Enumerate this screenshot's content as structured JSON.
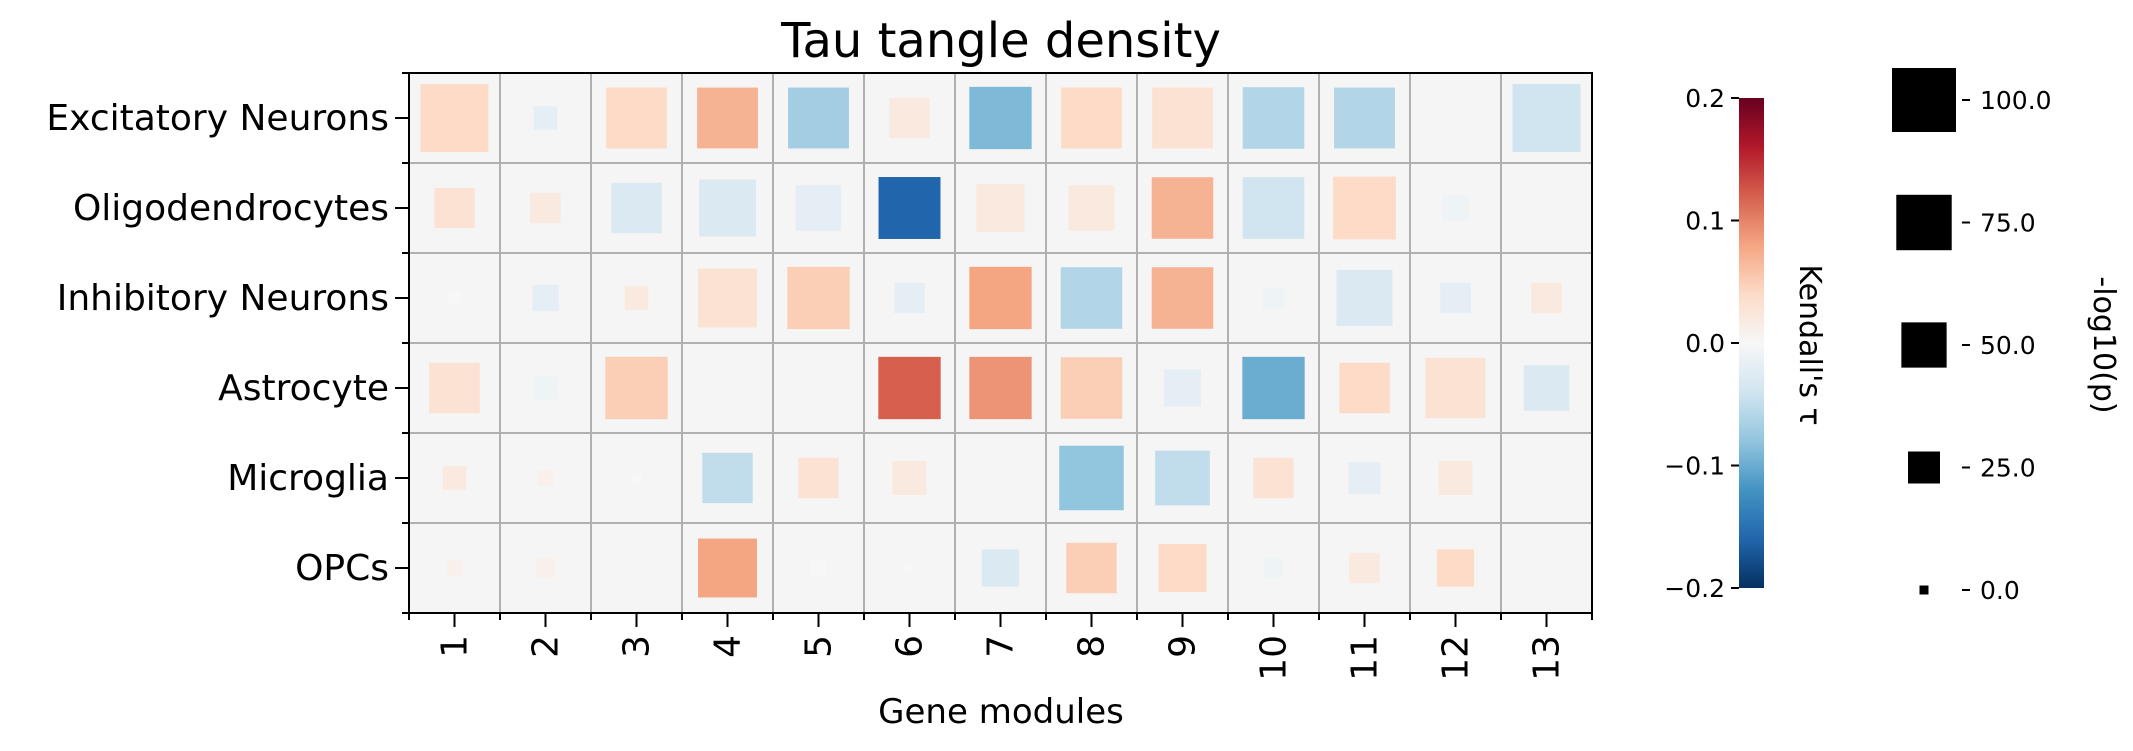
{
  "chart_data": {
    "type": "heatmap",
    "title": "Tau tangle density",
    "xlabel": "Gene modules",
    "ylabel": "",
    "rows": [
      "Excitatory Neurons",
      "Oligodendrocytes",
      "Inhibitory Neurons",
      "Astrocyte",
      "Microglia",
      "OPCs"
    ],
    "columns": [
      "1",
      "2",
      "3",
      "4",
      "5",
      "6",
      "7",
      "8",
      "9",
      "10",
      "11",
      "12",
      "13"
    ],
    "tau": [
      [
        0.04,
        -0.02,
        0.04,
        0.07,
        -0.07,
        0.02,
        -0.09,
        0.04,
        0.03,
        -0.06,
        -0.06,
        0.0,
        -0.04
      ],
      [
        0.03,
        0.02,
        -0.03,
        -0.03,
        -0.02,
        -0.16,
        0.02,
        0.02,
        0.07,
        -0.04,
        0.04,
        -0.01,
        0.0
      ],
      [
        0.0,
        -0.02,
        0.02,
        0.03,
        0.05,
        -0.02,
        0.08,
        -0.06,
        0.07,
        -0.01,
        -0.03,
        -0.02,
        0.02
      ],
      [
        0.03,
        -0.01,
        0.05,
        0.0,
        0.0,
        0.12,
        0.09,
        0.05,
        -0.02,
        -0.1,
        0.04,
        0.03,
        -0.03
      ],
      [
        0.02,
        0.01,
        0.0,
        -0.05,
        0.03,
        0.02,
        0.0,
        -0.08,
        -0.05,
        0.03,
        -0.02,
        0.02,
        0.0
      ],
      [
        0.01,
        0.01,
        0.0,
        0.08,
        0.0,
        0.0,
        -0.03,
        0.05,
        0.04,
        -0.01,
        0.02,
        0.04,
        0.0
      ]
    ],
    "neg_log10_p": [
      [
        100,
        12,
        80,
        80,
        80,
        35,
        84,
        80,
        80,
        82,
        80,
        0,
        100
      ],
      [
        35,
        20,
        55,
        70,
        45,
        83,
        50,
        45,
        82,
        82,
        85,
        15,
        0
      ],
      [
        3,
        15,
        12,
        75,
        84,
        20,
        84,
        82,
        82,
        10,
        68,
        20,
        20
      ],
      [
        55,
        12,
        84,
        0,
        0,
        84,
        84,
        82,
        30,
        84,
        55,
        78,
        45
      ],
      [
        12,
        5,
        2,
        55,
        35,
        25,
        0,
        90,
        65,
        35,
        22,
        25,
        0
      ],
      [
        5,
        8,
        0,
        75,
        5,
        1,
        30,
        55,
        50,
        8,
        20,
        30,
        0
      ]
    ],
    "color_scale": {
      "label": "Kendall's τ",
      "min": -0.2,
      "max": 0.2,
      "ticks": [
        "0.2",
        "0.1",
        "0.0",
        "−0.1",
        "−0.2"
      ],
      "tick_values": [
        0.2,
        0.1,
        0.0,
        -0.1,
        -0.2
      ],
      "colormap": "RdBu_r"
    },
    "size_scale": {
      "label": "-log10(p)",
      "max": 100,
      "ticks": [
        "100.0",
        "75.0",
        "50.0",
        "25.0",
        "0.0"
      ],
      "tick_values": [
        100,
        75,
        50,
        25,
        0
      ]
    },
    "cell_background": "#f5f5f5",
    "grid": true,
    "marker": "square"
  }
}
